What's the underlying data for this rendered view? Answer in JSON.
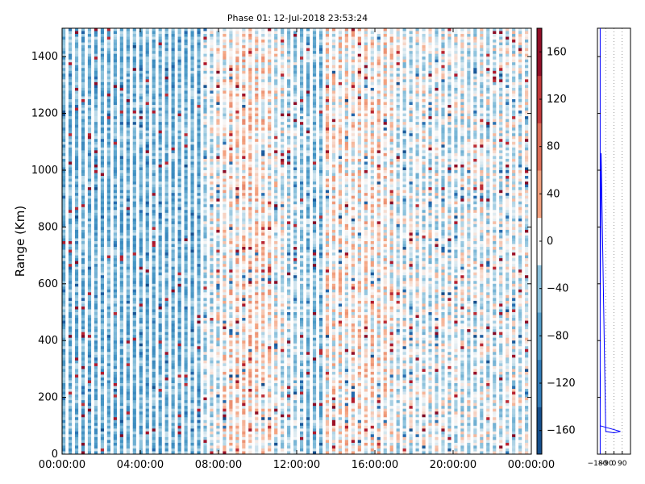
{
  "chart_data": [
    {
      "type": "heatmap",
      "title": "Phase 01: 12-Jul-2018 23:53:24",
      "xlabel": "",
      "ylabel": "Range (Km)",
      "x_tick_labels": [
        "00:00:00",
        "04:00:00",
        "08:00:00",
        "12:00:00",
        "16:00:00",
        "20:00:00",
        "00:00:00"
      ],
      "x_tick_hours": [
        0,
        4,
        8,
        12,
        16,
        20,
        24
      ],
      "xlim_hours": [
        0,
        24
      ],
      "y_ticks": [
        0,
        200,
        400,
        600,
        800,
        1000,
        1200,
        1400
      ],
      "ylim": [
        0,
        1500
      ],
      "colorbar": {
        "range": [
          -180,
          180
        ],
        "ticks": [
          -160,
          -120,
          -80,
          -40,
          0,
          40,
          80,
          120,
          160
        ],
        "tick_labels": [
          "−160",
          "−120",
          "−80",
          "−40",
          "0",
          "40",
          "80",
          "120",
          "160"
        ],
        "colormap": "RdBu_r"
      },
      "grid": false
    },
    {
      "type": "line",
      "x_tick_labels": [
        "−180",
        "−90",
        "0",
        "90"
      ],
      "x_ticks": [
        -180,
        -90,
        0,
        90
      ],
      "xlim": [
        -180,
        180
      ],
      "ylim": [
        0,
        1500
      ],
      "series": [
        {
          "x": [
            -150,
            -150,
            -148,
            -150,
            -150,
            -140,
            -90,
            0,
            70,
            -150,
            -150
          ],
          "y": [
            0,
            150,
            270,
            300,
            500,
            1060,
            80,
            75,
            80,
            100,
            1500
          ]
        }
      ],
      "grid": "vertical dotted",
      "colors": {
        "line": "#0000ff",
        "grid": "#555555"
      }
    }
  ]
}
